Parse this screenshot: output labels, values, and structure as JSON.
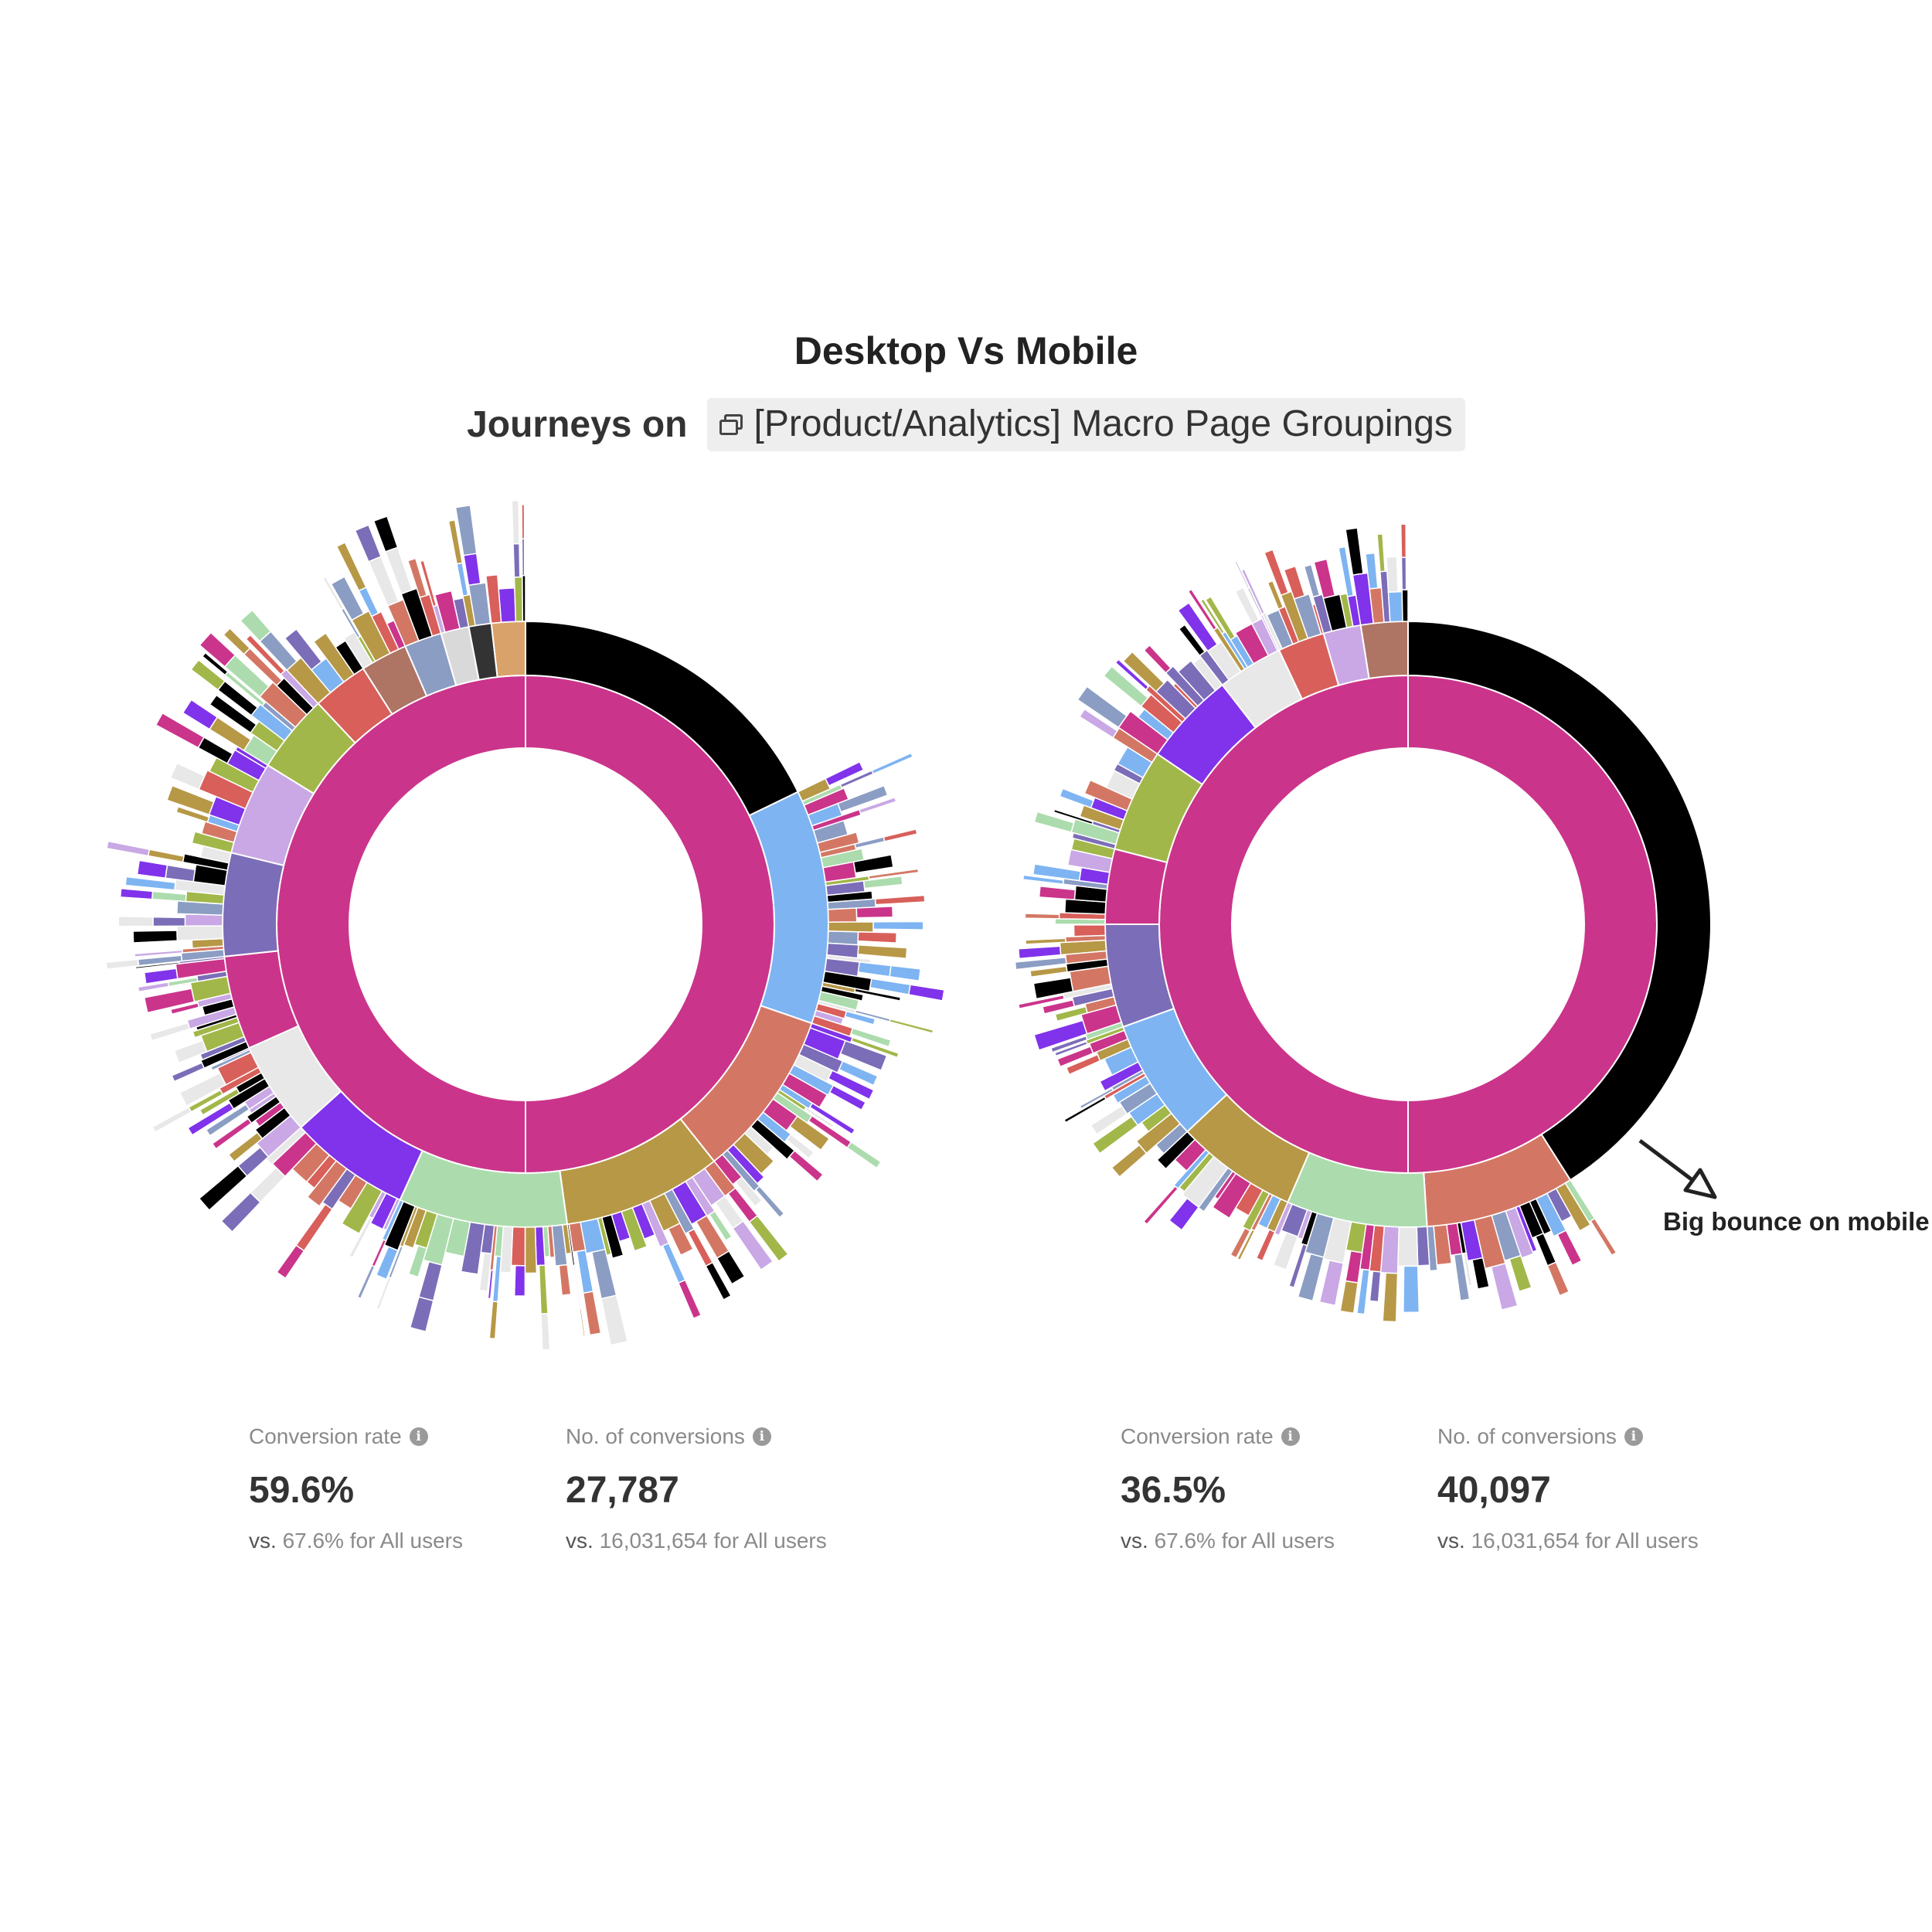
{
  "header": {
    "title": "Desktop Vs Mobile",
    "journeys_prefix": "Journeys on",
    "grouping_name": "[Product/Analytics] Macro Page Groupings",
    "grouping_icon": "copy-icon"
  },
  "annotation": {
    "text": "Big bounce on mobile"
  },
  "metrics": {
    "desktop": {
      "conversion_rate_label": "Conversion rate",
      "conversion_rate": "59.6%",
      "conversion_rate_vs": "67.6% for All users",
      "conversions_label": "No. of conversions",
      "conversions": "27,787",
      "conversions_vs": "16,031,654 for All users"
    },
    "mobile": {
      "conversion_rate_label": "Conversion rate",
      "conversion_rate": "36.5%",
      "conversion_rate_vs": "67.6% for All users",
      "conversions_label": "No. of conversions",
      "conversions": "40,097",
      "conversions_vs": "16,031,654 for All users"
    },
    "vs_label": "vs."
  },
  "chart_data": [
    {
      "type": "sunburst",
      "title": "",
      "rings": [
        {
          "level": 1,
          "segments": [
            {
              "share": 1.0,
              "color": "#cb348b"
            }
          ]
        },
        {
          "level": 2,
          "segments": [
            {
              "share": 0.178,
              "color": "#000000"
            },
            {
              "share": 0.125,
              "color": "#7eb4f2"
            },
            {
              "share": 0.09,
              "color": "#d37764"
            },
            {
              "share": 0.085,
              "color": "#b79846"
            },
            {
              "share": 0.09,
              "color": "#acdcad"
            },
            {
              "share": 0.065,
              "color": "#8033ea"
            },
            {
              "share": 0.05,
              "color": "#e8e8e8"
            },
            {
              "share": 0.05,
              "color": "#cb348b"
            },
            {
              "share": 0.055,
              "color": "#7c6db8"
            },
            {
              "share": 0.05,
              "color": "#c9a8e5"
            },
            {
              "share": 0.042,
              "color": "#a2b749"
            },
            {
              "share": 0.03,
              "color": "#d85f5a"
            },
            {
              "share": 0.025,
              "color": "#ae7464"
            },
            {
              "share": 0.02,
              "color": "#8b9dc3"
            },
            {
              "share": 0.015,
              "color": "#d9d9d9"
            },
            {
              "share": 0.012,
              "color": "#333333"
            },
            {
              "share": 0.018,
              "color": "#d9a26b"
            }
          ]
        }
      ]
    },
    {
      "type": "sunburst",
      "title": "",
      "rings": [
        {
          "level": 1,
          "segments": [
            {
              "share": 1.0,
              "color": "#cb348b"
            }
          ]
        },
        {
          "level": 2,
          "segments": [
            {
              "share": 0.41,
              "color": "#000000"
            },
            {
              "share": 0.08,
              "color": "#d37764"
            },
            {
              "share": 0.075,
              "color": "#acdcad"
            },
            {
              "share": 0.065,
              "color": "#b79846"
            },
            {
              "share": 0.065,
              "color": "#7eb4f2"
            },
            {
              "share": 0.055,
              "color": "#7c6db8"
            },
            {
              "share": 0.04,
              "color": "#cb348b"
            },
            {
              "share": 0.055,
              "color": "#a2b749"
            },
            {
              "share": 0.05,
              "color": "#8033ea"
            },
            {
              "share": 0.035,
              "color": "#e8e8e8"
            },
            {
              "share": 0.025,
              "color": "#d85f5a"
            },
            {
              "share": 0.02,
              "color": "#c9a8e5"
            },
            {
              "share": 0.025,
              "color": "#ae7464"
            }
          ]
        }
      ]
    }
  ]
}
